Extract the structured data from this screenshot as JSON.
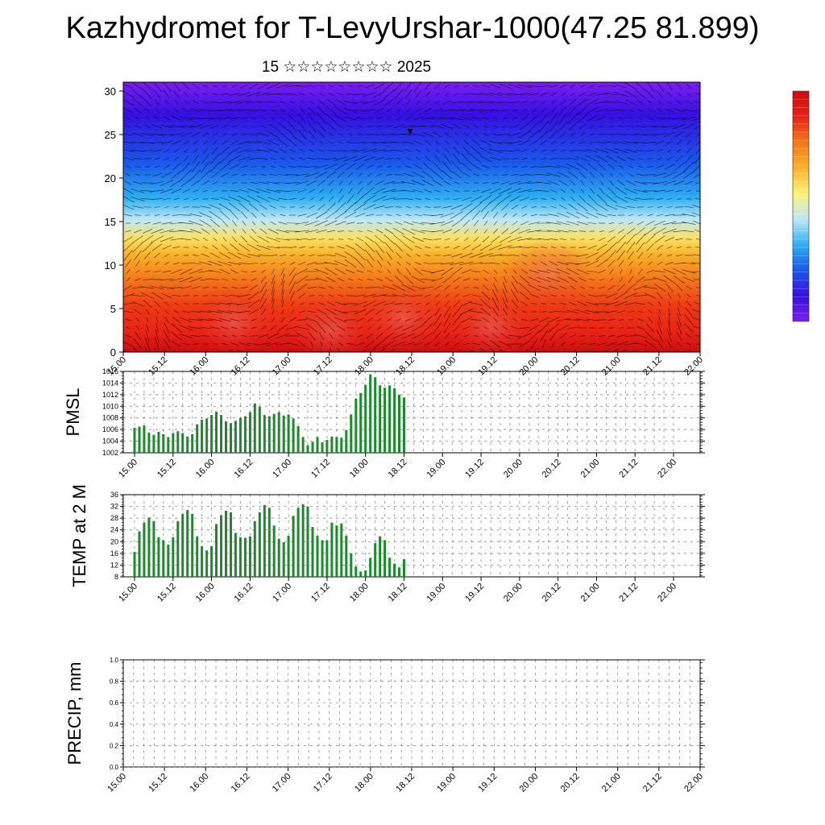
{
  "header": {
    "title": "Kazhydromet for T-LevyUrshar-1000(47.25 81.899)",
    "subtitle": "15 ☆☆☆☆☆☆☆☆ 2025"
  },
  "chart_data": [
    {
      "type": "heatmap",
      "title": "",
      "ylim": [
        0,
        30
      ],
      "y_ticks": [
        "0",
        "5",
        "10",
        "15",
        "20",
        "25",
        "30"
      ],
      "x_ticks": [
        "15.00",
        "15.12",
        "16.00",
        "16.12",
        "17.00",
        "17.12",
        "18.00",
        "18.12",
        "19.00",
        "19.12",
        "20.00",
        "20.12",
        "21.00",
        "21.12",
        "22.00"
      ],
      "colorscale": [
        "#7a1ff0",
        "#3510e0",
        "#1a58ea",
        "#2fb0f2",
        "#bfe8f6",
        "#fff176",
        "#f8b12a",
        "#f47818",
        "#e82216",
        "#cc0c0e"
      ],
      "overlay": "wind vectors"
    },
    {
      "type": "line",
      "ylabel": "PMSL",
      "ylim": [
        1002,
        1016
      ],
      "y_ticks": [
        "1002",
        "1004",
        "1006",
        "1008",
        "1010",
        "1012",
        "1014",
        "1016"
      ],
      "x_ticks": [
        "15.00",
        "15.12",
        "16.00",
        "16.12",
        "17.00",
        "17.12",
        "18.00",
        "18.12",
        "19.00",
        "19.12",
        "20.00",
        "20.12",
        "21.00",
        "21.12",
        "22.00"
      ],
      "color": "#0000cc",
      "x_step_hours": 3,
      "values": [
        1006.3,
        1006.5,
        1006.7,
        1005.5,
        1005.1,
        1005.6,
        1005.2,
        1004.7,
        1005.4,
        1005.7,
        1005.4,
        1004.8,
        1005.2,
        1006.9,
        1007.7,
        1007.9,
        1008.5,
        1009.1,
        1008.5,
        1007.4,
        1007.1,
        1007.5,
        1008.0,
        1008.3,
        1009.0,
        1010.5,
        1009.9,
        1008.5,
        1008.3,
        1008.7,
        1009.0,
        1008.4,
        1008.6,
        1007.9,
        1006.6,
        1004.7,
        1003.3,
        1003.9,
        1004.7,
        1003.8,
        1004.2,
        1004.8,
        1004.7,
        1004.6,
        1005.9,
        1008.6,
        1011.3,
        1012.3,
        1013.7,
        1015.5,
        1015.0,
        1013.6,
        1013.2,
        1013.6,
        1013.1,
        1012.0,
        1011.5
      ]
    },
    {
      "type": "line",
      "ylabel": "TEMP at 2 M",
      "ylim": [
        8,
        36
      ],
      "y_ticks": [
        "8",
        "12",
        "16",
        "20",
        "24",
        "28",
        "32",
        "36"
      ],
      "x_ticks": [
        "15.00",
        "15.12",
        "16.00",
        "16.12",
        "17.00",
        "17.12",
        "18.00",
        "18.12",
        "19.00",
        "19.12",
        "20.00",
        "20.12",
        "21.00",
        "21.12",
        "22.00"
      ],
      "color": "#dd0000",
      "x_step_hours": 3,
      "values": [
        16.5,
        23.5,
        26.5,
        28.2,
        27.0,
        21.5,
        20.5,
        19.0,
        21.5,
        27.0,
        29.5,
        30.8,
        29.5,
        21.8,
        18.5,
        17.0,
        18.5,
        26.0,
        29.0,
        30.5,
        30.0,
        23.0,
        21.5,
        21.3,
        21.8,
        27.0,
        30.0,
        32.5,
        31.5,
        25.5,
        21.0,
        19.8,
        22.0,
        28.8,
        31.5,
        32.8,
        32.0,
        25.0,
        22.0,
        20.5,
        20.5,
        26.5,
        25.5,
        26.2,
        22.0,
        16.0,
        11.5,
        9.8,
        10.2,
        14.5,
        19.5,
        21.8,
        20.5,
        14.5,
        12.5,
        11.2,
        14.0
      ]
    },
    {
      "type": "bar",
      "ylabel": "PRECIP, mm",
      "ylim": [
        0.0,
        1.0
      ],
      "y_ticks": [
        "0.0",
        "0.2",
        "0.4",
        "0.6",
        "0.8",
        "1.0"
      ],
      "x_ticks": [
        "15.00",
        "15.12",
        "16.00",
        "16.12",
        "17.00",
        "17.12",
        "18.00",
        "18.12",
        "19.00",
        "19.12",
        "20.00",
        "20.12",
        "21.00",
        "21.12",
        "22.00"
      ],
      "x_step_hours": 3,
      "values": [
        0,
        0,
        0,
        0,
        0,
        0,
        0,
        0,
        0,
        0,
        0,
        0,
        0,
        0,
        0,
        0,
        0,
        0,
        0,
        0,
        0,
        0,
        0,
        0,
        0,
        0,
        0,
        0,
        0,
        0,
        0,
        0,
        0,
        0,
        0,
        0,
        0,
        0,
        0,
        0,
        0,
        0,
        0,
        0,
        0,
        0,
        0,
        0,
        0,
        0,
        0,
        0,
        0,
        0,
        0,
        0,
        0
      ]
    }
  ]
}
